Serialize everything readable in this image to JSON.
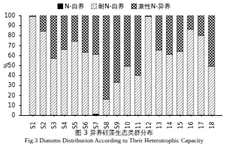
{
  "chart_data": {
    "type": "bar",
    "stacked": true,
    "title": "图 3 异养硅藻生态类群分布",
    "subtitle": "Fig.3 Diatoms Distriburion According to Their Heterotrophic Capacity",
    "y_label": "%",
    "categories": [
      "S1",
      "S2",
      "S3",
      "S4",
      "S5",
      "S6",
      "S7",
      "S8",
      "S9",
      "S10",
      "S11",
      "S12",
      "S13",
      "S14",
      "S15",
      "S16",
      "S17",
      "S18"
    ],
    "series": [
      {
        "name": "N-自养",
        "color": "#000000",
        "values": [
          0,
          0,
          0,
          0,
          0,
          0,
          1,
          0,
          0,
          0,
          0,
          0,
          0,
          0,
          0,
          0,
          0,
          0
        ]
      },
      {
        "name": "耐N-自养",
        "color": "#8c8c8c",
        "values": [
          99,
          84,
          57,
          66,
          74,
          63,
          60,
          16,
          33,
          49,
          40,
          99,
          65,
          61,
          64,
          86,
          80,
          49
        ]
      },
      {
        "name": "兼性N-异养",
        "color": "#2a2a2a",
        "values": [
          1,
          16,
          43,
          34,
          26,
          37,
          39,
          84,
          67,
          51,
          60,
          1,
          35,
          39,
          36,
          14,
          20,
          51
        ]
      }
    ],
    "ylim": [
      0,
      100
    ],
    "yticks": [
      0,
      10,
      20,
      30,
      40,
      50,
      60,
      70,
      80,
      90,
      100
    ],
    "legend": "top"
  }
}
